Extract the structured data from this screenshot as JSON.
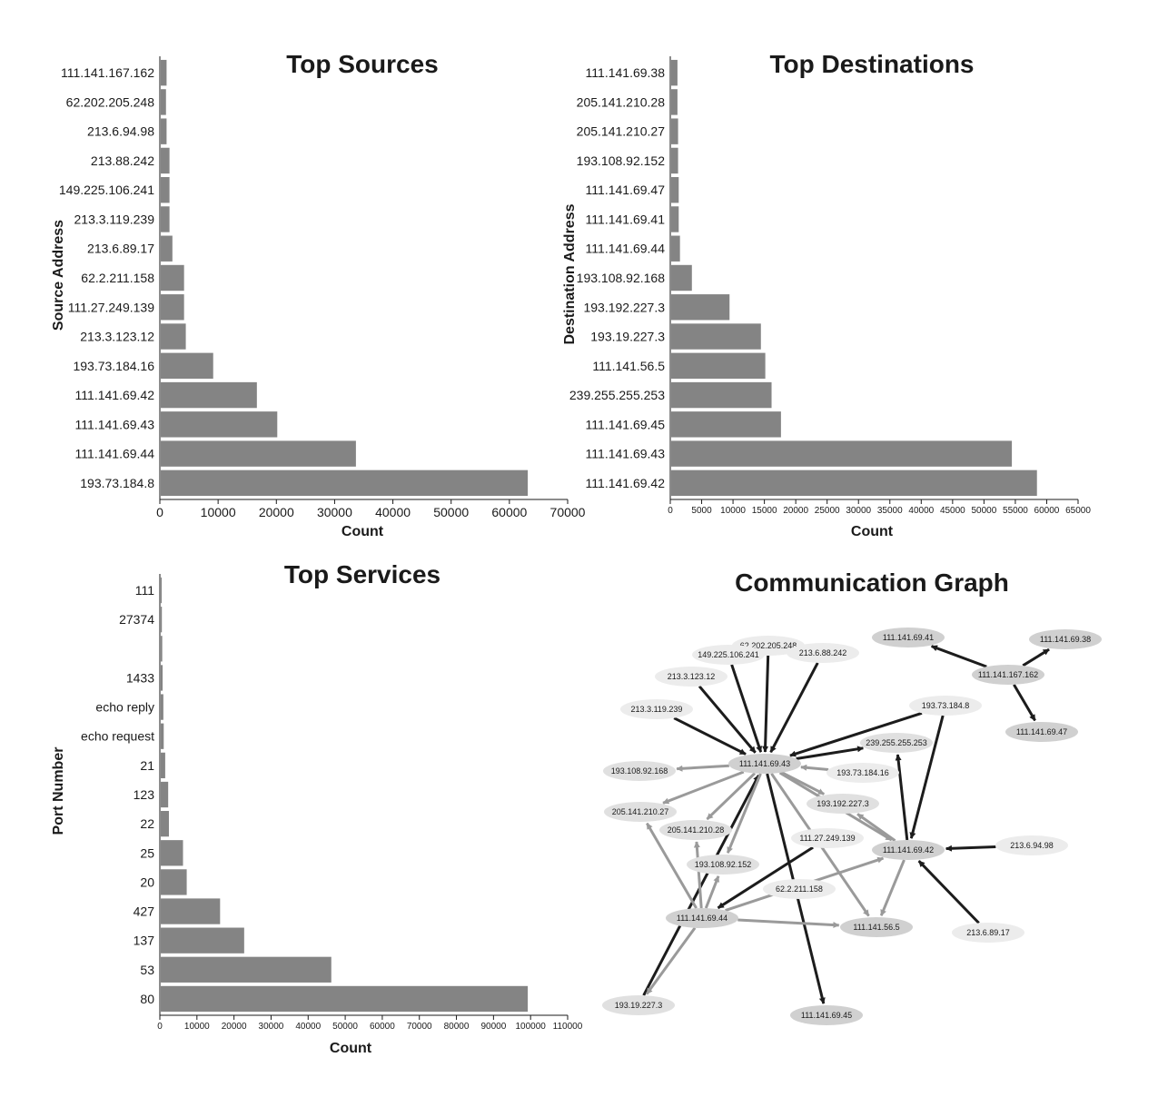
{
  "chart_data": [
    {
      "type": "bar",
      "orientation": "horizontal",
      "title": "Top Sources",
      "xlabel": "Count",
      "ylabel": "Source Address",
      "xlim": [
        0,
        70000
      ],
      "xticks": [
        0,
        10000,
        20000,
        30000,
        40000,
        50000,
        60000,
        70000
      ],
      "categories": [
        "111.141.167.162",
        "62.202.205.248",
        "213.6.94.98",
        "213.88.242",
        "149.225.106.241",
        "213.3.119.239",
        "213.6.89.17",
        "62.2.211.158",
        "111.27.249.139",
        "213.3.123.12",
        "193.73.184.16",
        "111.141.69.42",
        "111.141.69.43",
        "111.141.69.44",
        "193.73.184.8"
      ],
      "values": [
        1000,
        900,
        1000,
        1500,
        1500,
        1500,
        2000,
        4000,
        4000,
        4300,
        9000,
        16500,
        20000,
        33500,
        63000
      ],
      "color": "#848484"
    },
    {
      "type": "bar",
      "orientation": "horizontal",
      "title": "Top Destinations",
      "xlabel": "Count",
      "ylabel": "Destination Address",
      "xlim": [
        0,
        65000
      ],
      "xticks": [
        0,
        5000,
        10000,
        15000,
        20000,
        25000,
        30000,
        35000,
        40000,
        45000,
        50000,
        55000,
        60000,
        65000
      ],
      "categories": [
        "111.141.69.38",
        "205.141.210.28",
        "205.141.210.27",
        "193.108.92.152",
        "111.141.69.47",
        "111.141.69.41",
        "111.141.69.44",
        "193.108.92.168",
        "193.192.227.3",
        "193.19.227.3",
        "111.141.56.5",
        "239.255.255.253",
        "111.141.69.45",
        "111.141.69.43",
        "111.141.69.42"
      ],
      "values": [
        1000,
        1000,
        1100,
        1100,
        1200,
        1200,
        1400,
        3300,
        9300,
        14300,
        15000,
        16000,
        17500,
        54300,
        58300
      ],
      "color": "#848484"
    },
    {
      "type": "bar",
      "orientation": "horizontal",
      "title": "Top Services",
      "xlabel": "Count",
      "ylabel": "Port Number",
      "xlim": [
        0,
        110000
      ],
      "xticks": [
        0,
        10000,
        20000,
        30000,
        40000,
        50000,
        60000,
        70000,
        80000,
        90000,
        100000,
        110000
      ],
      "categories": [
        "111",
        "27374",
        "",
        "1433",
        "echo reply",
        "echo request",
        "21",
        "123",
        "22",
        "25",
        "20",
        "427",
        "137",
        "53",
        "80"
      ],
      "values": [
        200,
        300,
        400,
        500,
        700,
        800,
        1200,
        2000,
        2200,
        6000,
        7000,
        16000,
        22500,
        46000,
        99000
      ],
      "color": "#848484"
    },
    {
      "type": "graph",
      "title": "Communication Graph",
      "nodes": [
        {
          "label": "111.141.69.41",
          "shade": "#d0d0d0"
        },
        {
          "label": "111.141.69.38",
          "shade": "#d0d0d0"
        },
        {
          "label": "111.141.167.162",
          "shade": "#d0d0d0"
        },
        {
          "label": "111.141.69.47",
          "shade": "#d0d0d0"
        },
        {
          "label": "62.202.205.248",
          "shade": "#ececec"
        },
        {
          "label": "149.225.106.241",
          "shade": "#ececec"
        },
        {
          "label": "213.6.88.242",
          "shade": "#ececec"
        },
        {
          "label": "213.3.123.12",
          "shade": "#ececec"
        },
        {
          "label": "213.3.119.239",
          "shade": "#ececec"
        },
        {
          "label": "193.73.184.8",
          "shade": "#ececec"
        },
        {
          "label": "239.255.255.253",
          "shade": "#e0e0e0"
        },
        {
          "label": "111.141.69.43",
          "shade": "#d0d0d0"
        },
        {
          "label": "193.108.92.168",
          "shade": "#e0e0e0"
        },
        {
          "label": "193.73.184.16",
          "shade": "#ececec"
        },
        {
          "label": "193.192.227.3",
          "shade": "#e0e0e0"
        },
        {
          "label": "205.141.210.27",
          "shade": "#e0e0e0"
        },
        {
          "label": "205.141.210.28",
          "shade": "#e0e0e0"
        },
        {
          "label": "111.27.249.139",
          "shade": "#ececec"
        },
        {
          "label": "111.141.69.42",
          "shade": "#d0d0d0"
        },
        {
          "label": "213.6.94.98",
          "shade": "#ececec"
        },
        {
          "label": "193.108.92.152",
          "shade": "#e0e0e0"
        },
        {
          "label": "62.2.211.158",
          "shade": "#ececec"
        },
        {
          "label": "111.141.69.44",
          "shade": "#d0d0d0"
        },
        {
          "label": "111.141.56.5",
          "shade": "#d0d0d0"
        },
        {
          "label": "213.6.89.17",
          "shade": "#ececec"
        },
        {
          "label": "193.19.227.3",
          "shade": "#e0e0e0"
        },
        {
          "label": "111.141.69.45",
          "shade": "#d0d0d0"
        }
      ],
      "edges": [
        {
          "from": "111.141.167.162",
          "to": "111.141.69.41",
          "shade": "dark"
        },
        {
          "from": "111.141.167.162",
          "to": "111.141.69.38",
          "shade": "dark"
        },
        {
          "from": "111.141.167.162",
          "to": "111.141.69.47",
          "shade": "dark"
        },
        {
          "from": "62.202.205.248",
          "to": "111.141.69.43",
          "shade": "dark"
        },
        {
          "from": "149.225.106.241",
          "to": "111.141.69.43",
          "shade": "dark"
        },
        {
          "from": "213.6.88.242",
          "to": "111.141.69.43",
          "shade": "dark"
        },
        {
          "from": "213.3.123.12",
          "to": "111.141.69.43",
          "shade": "dark"
        },
        {
          "from": "213.3.119.239",
          "to": "111.141.69.43",
          "shade": "dark"
        },
        {
          "from": "193.73.184.8",
          "to": "111.141.69.43",
          "shade": "dark"
        },
        {
          "from": "193.73.184.8",
          "to": "111.141.69.42",
          "shade": "dark"
        },
        {
          "from": "111.141.69.43",
          "to": "239.255.255.253",
          "shade": "dark"
        },
        {
          "from": "111.141.69.42",
          "to": "239.255.255.253",
          "shade": "dark"
        },
        {
          "from": "213.6.94.98",
          "to": "111.141.69.42",
          "shade": "dark"
        },
        {
          "from": "213.6.89.17",
          "to": "111.141.69.42",
          "shade": "dark"
        },
        {
          "from": "111.27.249.139",
          "to": "111.141.69.44",
          "shade": "dark"
        },
        {
          "from": "193.19.227.3",
          "to": "111.141.69.43",
          "shade": "dark"
        },
        {
          "from": "111.141.69.43",
          "to": "111.141.69.45",
          "shade": "dark"
        },
        {
          "from": "111.141.69.43",
          "to": "193.108.92.168",
          "shade": "light"
        },
        {
          "from": "111.141.69.43",
          "to": "205.141.210.27",
          "shade": "light"
        },
        {
          "from": "111.141.69.43",
          "to": "205.141.210.28",
          "shade": "light"
        },
        {
          "from": "111.141.69.43",
          "to": "193.108.92.152",
          "shade": "light"
        },
        {
          "from": "111.141.69.43",
          "to": "193.192.227.3",
          "shade": "light"
        },
        {
          "from": "111.141.69.43",
          "to": "111.141.56.5",
          "shade": "light"
        },
        {
          "from": "111.141.69.43",
          "to": "111.141.69.42",
          "shade": "light"
        },
        {
          "from": "193.73.184.16",
          "to": "111.141.69.43",
          "shade": "light"
        },
        {
          "from": "111.141.69.44",
          "to": "205.141.210.27",
          "shade": "light"
        },
        {
          "from": "111.141.69.44",
          "to": "205.141.210.28",
          "shade": "light"
        },
        {
          "from": "111.141.69.44",
          "to": "193.108.92.152",
          "shade": "light"
        },
        {
          "from": "111.141.69.44",
          "to": "111.141.56.5",
          "shade": "light"
        },
        {
          "from": "111.141.69.44",
          "to": "193.19.227.3",
          "shade": "light"
        },
        {
          "from": "111.141.69.44",
          "to": "111.141.69.42",
          "shade": "light"
        },
        {
          "from": "111.141.69.42",
          "to": "193.192.227.3",
          "shade": "light"
        },
        {
          "from": "111.141.69.42",
          "to": "111.141.56.5",
          "shade": "light"
        }
      ]
    }
  ]
}
